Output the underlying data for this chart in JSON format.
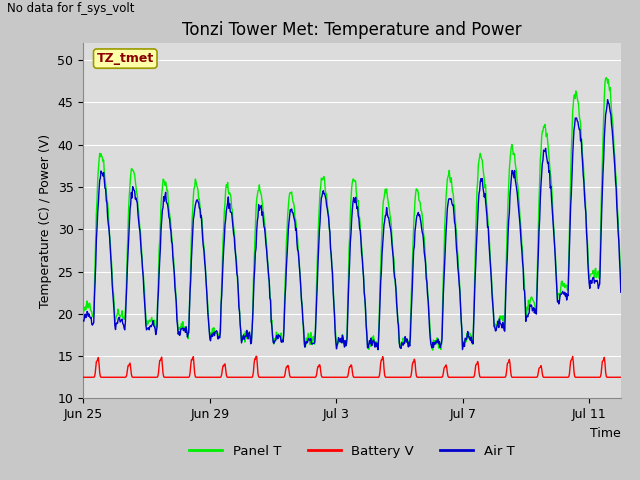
{
  "title": "Tonzi Tower Met: Temperature and Power",
  "xlabel": "Time",
  "ylabel": "Temperature (C) / Power (V)",
  "annotation_top_left": "No data for f_sys_volt",
  "legend_label": "TZ_tmet",
  "ylim": [
    10,
    52
  ],
  "yticks": [
    10,
    15,
    20,
    25,
    30,
    35,
    40,
    45,
    50
  ],
  "fig_background_color": "#c8c8c8",
  "axes_background": "#dcdcdc",
  "panel_T_color": "#00ee00",
  "battery_V_color": "#ff0000",
  "air_T_color": "#0000cc",
  "title_fontsize": 12,
  "axis_label_fontsize": 9,
  "tick_fontsize": 9,
  "num_days": 17,
  "x_tick_labels": [
    "Jun 25",
    "Jun 29",
    "Jul 3",
    "Jul 7",
    "Jul 11"
  ],
  "x_tick_positions": [
    0,
    4,
    8,
    12,
    16
  ]
}
